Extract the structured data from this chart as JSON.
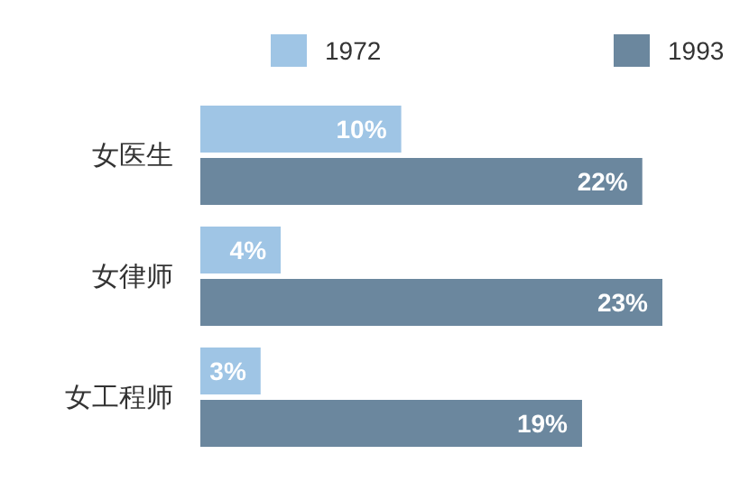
{
  "chart_data": {
    "type": "bar",
    "orientation": "horizontal",
    "legend": "top",
    "categories": [
      "女医生",
      "女律师",
      "女工程师"
    ],
    "series": [
      {
        "name": "1972",
        "color": "#9fc5e5",
        "values": [
          10,
          4,
          3
        ],
        "value_labels": [
          "10%",
          "4%",
          "3%"
        ]
      },
      {
        "name": "1993",
        "color": "#6b879e",
        "values": [
          22,
          23,
          19
        ],
        "value_labels": [
          "22%",
          "23%",
          "19%"
        ]
      }
    ]
  }
}
